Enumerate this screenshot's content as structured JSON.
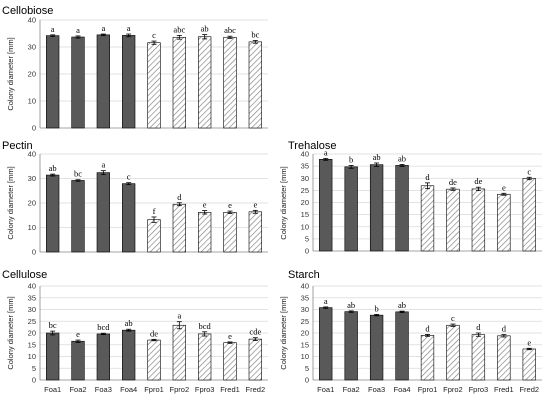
{
  "colors": {
    "solid_bar": "#595959",
    "hatched_bar_line": "#7f7f7f",
    "bar_edge": "#000000"
  },
  "chart_data": [
    {
      "type": "bar",
      "title": "Cellobiose",
      "ylabel": "Colony diameter [mm]",
      "ylim": [
        0,
        40
      ],
      "yticks": [
        0,
        10,
        20,
        30,
        40
      ],
      "grid": true,
      "categories": [
        "Foa1",
        "Foa2",
        "Foa3",
        "Foa4",
        "Fpro1",
        "Fpro2",
        "Fpro3",
        "Fred1",
        "Fred2"
      ],
      "show_category_labels": false,
      "values": [
        34.2,
        33.7,
        34.5,
        34.3,
        31.6,
        33.6,
        33.8,
        33.6,
        31.9
      ],
      "errors": [
        0.3,
        0.4,
        0.3,
        0.5,
        0.6,
        0.7,
        0.8,
        0.4,
        0.5
      ],
      "labels": [
        "a",
        "a",
        "a",
        "a",
        "c",
        "abc",
        "ab",
        "abc",
        "bc"
      ],
      "hatched": [
        false,
        false,
        false,
        false,
        true,
        true,
        true,
        true,
        true
      ]
    },
    {
      "type": "bar",
      "title": "Pectin",
      "ylabel": "Colony diameter [mm]",
      "ylim": [
        0,
        40
      ],
      "yticks": [
        0,
        10,
        20,
        30,
        40
      ],
      "grid": true,
      "categories": [
        "Foa1",
        "Foa2",
        "Foa3",
        "Foa4",
        "Fpro1",
        "Fpro2",
        "Fpro3",
        "Fred1",
        "Fred2"
      ],
      "show_category_labels": false,
      "values": [
        31.4,
        29.2,
        32.4,
        27.9,
        13.2,
        19.5,
        16.2,
        16.2,
        16.4
      ],
      "errors": [
        0.4,
        0.3,
        0.8,
        0.4,
        1.1,
        0.6,
        0.7,
        0.5,
        0.6
      ],
      "labels": [
        "ab",
        "bc",
        "a",
        "c",
        "f",
        "d",
        "e",
        "e",
        "e"
      ],
      "hatched": [
        false,
        false,
        false,
        false,
        true,
        true,
        true,
        true,
        true
      ]
    },
    {
      "type": "bar",
      "title": "Trehalose",
      "ylabel": "Colony diameter [mm]",
      "ylim": [
        0,
        40
      ],
      "yticks": [
        0,
        5,
        10,
        15,
        20,
        25,
        30,
        35,
        40
      ],
      "grid": true,
      "categories": [
        "Foa1",
        "Foa2",
        "Foa3",
        "Foa4",
        "Fpro1",
        "Fpro2",
        "Fpro3",
        "Fred1",
        "Fred2"
      ],
      "show_category_labels": false,
      "values": [
        37.8,
        34.7,
        35.6,
        35.3,
        26.9,
        25.5,
        25.6,
        23.4,
        29.9
      ],
      "errors": [
        0.4,
        0.6,
        0.7,
        0.4,
        1.2,
        0.5,
        0.7,
        0.4,
        0.5
      ],
      "labels": [
        "a",
        "b",
        "ab",
        "ab",
        "d",
        "de",
        "de",
        "e",
        "c"
      ],
      "hatched": [
        false,
        false,
        false,
        false,
        true,
        true,
        true,
        true,
        true
      ]
    },
    {
      "type": "bar",
      "title": "Cellulose",
      "ylabel": "Colony diameter [mm]",
      "ylim": [
        0,
        40
      ],
      "yticks": [
        0,
        5,
        10,
        15,
        20,
        25,
        30,
        35,
        40
      ],
      "grid": true,
      "categories": [
        "Foa1",
        "Foa2",
        "Foa3",
        "Foa4",
        "Fpro1",
        "Fpro2",
        "Fpro3",
        "Fred1",
        "Fred2"
      ],
      "show_category_labels": true,
      "values": [
        20.0,
        16.5,
        19.6,
        21.2,
        17.0,
        23.3,
        19.6,
        15.9,
        17.4
      ],
      "errors": [
        0.8,
        0.5,
        0.3,
        0.4,
        0.3,
        1.5,
        0.9,
        0.3,
        0.6
      ],
      "labels": [
        "bc",
        "e",
        "bcd",
        "ab",
        "de",
        "a",
        "bcd",
        "e",
        "cde"
      ],
      "hatched": [
        false,
        false,
        false,
        false,
        true,
        true,
        true,
        true,
        true
      ]
    },
    {
      "type": "bar",
      "title": "Starch",
      "ylabel": "Colony diameter [mm]",
      "ylim": [
        0,
        40
      ],
      "yticks": [
        0,
        5,
        10,
        15,
        20,
        25,
        30,
        35,
        40
      ],
      "grid": true,
      "categories": [
        "Foa1",
        "Foa2",
        "Foa3",
        "Foa4",
        "Fpro1",
        "Fpro2",
        "Fpro3",
        "Fred1",
        "Fred2"
      ],
      "show_category_labels": true,
      "values": [
        30.8,
        29.1,
        27.6,
        29.0,
        19.0,
        23.3,
        19.3,
        18.8,
        13.2
      ],
      "errors": [
        0.3,
        0.3,
        0.3,
        0.3,
        0.4,
        0.5,
        0.7,
        0.5,
        0.3
      ],
      "labels": [
        "a",
        "ab",
        "b",
        "ab",
        "d",
        "c",
        "d",
        "d",
        "e"
      ],
      "hatched": [
        false,
        false,
        false,
        false,
        true,
        true,
        true,
        true,
        true
      ]
    }
  ]
}
